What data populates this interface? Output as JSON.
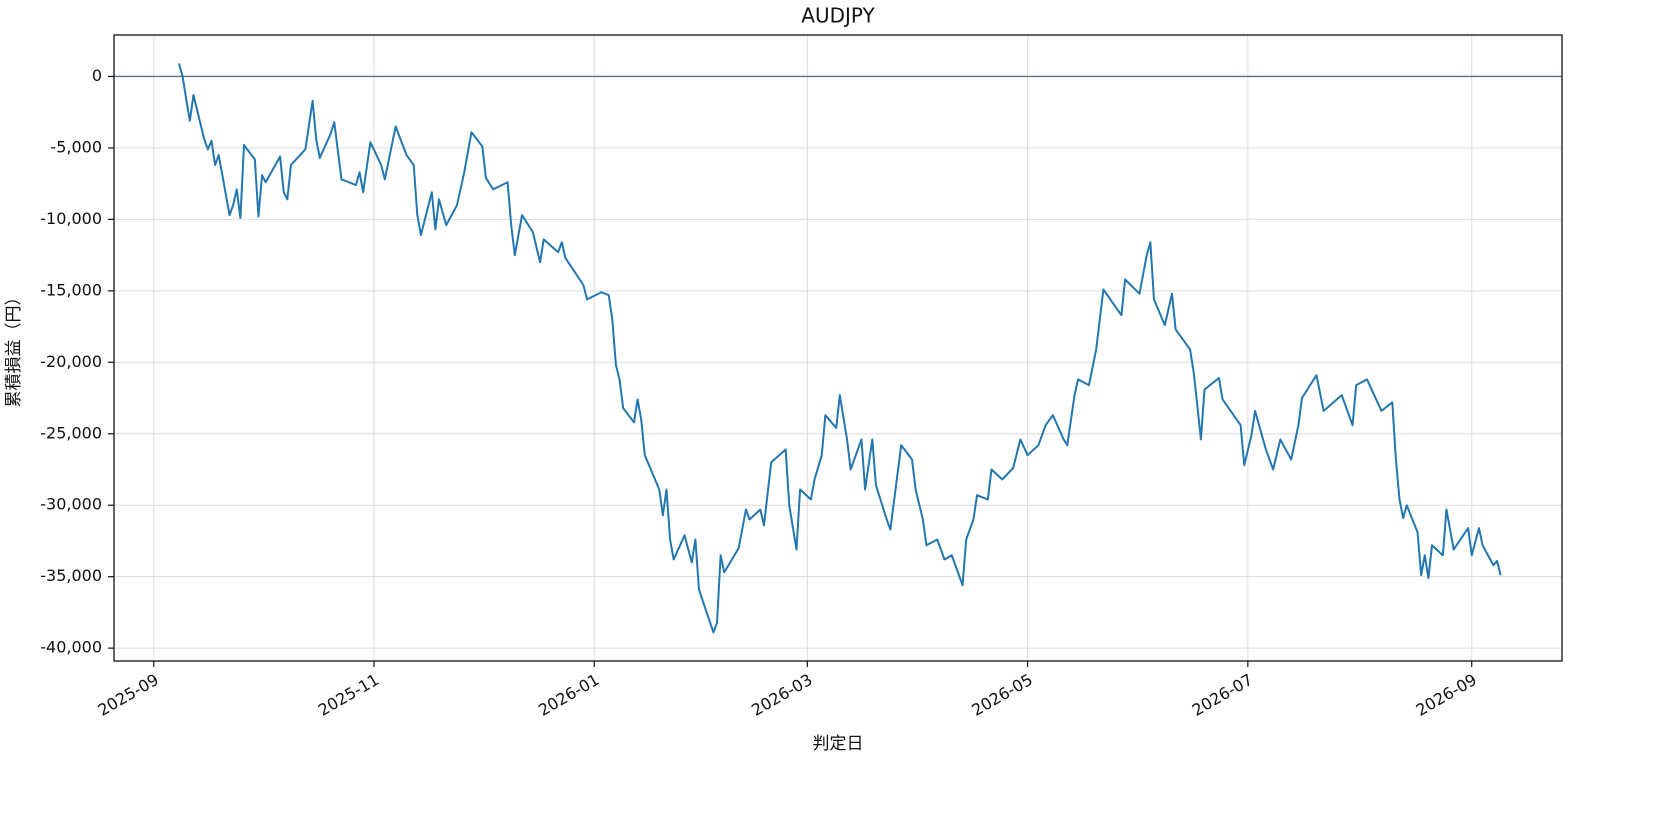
{
  "chart_data": {
    "type": "line",
    "title": "AUDJPY",
    "xlabel": "判定日",
    "ylabel": "累積損益（円）",
    "grid": true,
    "hline": 0,
    "xlim": [
      "2025-08-21",
      "2026-09-26"
    ],
    "ylim": [
      -40900,
      2900
    ],
    "xticks": [
      {
        "value": "2025-09-01",
        "label": "2025-09"
      },
      {
        "value": "2025-11-01",
        "label": "2025-11"
      },
      {
        "value": "2026-01-01",
        "label": "2026-01"
      },
      {
        "value": "2026-03-01",
        "label": "2026-03"
      },
      {
        "value": "2026-05-01",
        "label": "2026-05"
      },
      {
        "value": "2026-07-01",
        "label": "2026-07"
      },
      {
        "value": "2026-09-01",
        "label": "2026-09"
      }
    ],
    "yticks": [
      0,
      {
        "value": -5000,
        "label": "-5,000"
      },
      {
        "value": -10000,
        "label": "-10,000"
      },
      {
        "value": -15000,
        "label": "-15,000"
      },
      {
        "value": -20000,
        "label": "-20,000"
      },
      {
        "value": -25000,
        "label": "-25,000"
      },
      {
        "value": -30000,
        "label": "-30,000"
      },
      {
        "value": -35000,
        "label": "-35,000"
      },
      {
        "value": -40000,
        "label": "-40,000"
      }
    ],
    "x": [
      "2025-09-08",
      "2025-09-09",
      "2025-09-10",
      "2025-09-11",
      "2025-09-12",
      "2025-09-15",
      "2025-09-16",
      "2025-09-17",
      "2025-09-18",
      "2025-09-19",
      "2025-09-22",
      "2025-09-23",
      "2025-09-24",
      "2025-09-25",
      "2025-09-26",
      "2025-09-29",
      "2025-09-30",
      "2025-10-01",
      "2025-10-02",
      "2025-10-06",
      "2025-10-07",
      "2025-10-08",
      "2025-10-09",
      "2025-10-13",
      "2025-10-15",
      "2025-10-16",
      "2025-10-17",
      "2025-10-20",
      "2025-10-21",
      "2025-10-23",
      "2025-10-27",
      "2025-10-28",
      "2025-10-29",
      "2025-10-31",
      "2025-11-03",
      "2025-11-04",
      "2025-11-07",
      "2025-11-10",
      "2025-11-12",
      "2025-11-13",
      "2025-11-14",
      "2025-11-17",
      "2025-11-18",
      "2025-11-19",
      "2025-11-21",
      "2025-11-24",
      "2025-11-26",
      "2025-11-28",
      "2025-12-01",
      "2025-12-02",
      "2025-12-04",
      "2025-12-08",
      "2025-12-09",
      "2025-12-10",
      "2025-12-12",
      "2025-12-15",
      "2025-12-17",
      "2025-12-18",
      "2025-12-22",
      "2025-12-23",
      "2025-12-24",
      "2025-12-29",
      "2025-12-30",
      "2026-01-03",
      "2026-01-05",
      "2026-01-06",
      "2026-01-07",
      "2026-01-08",
      "2026-01-09",
      "2026-01-12",
      "2026-01-13",
      "2026-01-14",
      "2026-01-15",
      "2026-01-19",
      "2026-01-20",
      "2026-01-21",
      "2026-01-22",
      "2026-01-23",
      "2026-01-26",
      "2026-01-28",
      "2026-01-29",
      "2026-01-30",
      "2026-02-03",
      "2026-02-04",
      "2026-02-05",
      "2026-02-06",
      "2026-02-10",
      "2026-02-12",
      "2026-02-13",
      "2026-02-16",
      "2026-02-17",
      "2026-02-19",
      "2026-02-23",
      "2026-02-24",
      "2026-02-26",
      "2026-02-27",
      "2026-03-02",
      "2026-03-03",
      "2026-03-05",
      "2026-03-06",
      "2026-03-09",
      "2026-03-10",
      "2026-03-12",
      "2026-03-13",
      "2026-03-16",
      "2026-03-17",
      "2026-03-19",
      "2026-03-20",
      "2026-03-23",
      "2026-03-24",
      "2026-03-27",
      "2026-03-30",
      "2026-03-31",
      "2026-04-02",
      "2026-04-03",
      "2026-04-06",
      "2026-04-08",
      "2026-04-10",
      "2026-04-13",
      "2026-04-14",
      "2026-04-16",
      "2026-04-17",
      "2026-04-20",
      "2026-04-21",
      "2026-04-24",
      "2026-04-27",
      "2026-04-29",
      "2026-05-01",
      "2026-05-04",
      "2026-05-06",
      "2026-05-08",
      "2026-05-11",
      "2026-05-12",
      "2026-05-14",
      "2026-05-15",
      "2026-05-18",
      "2026-05-20",
      "2026-05-22",
      "2026-05-25",
      "2026-05-27",
      "2026-05-28",
      "2026-06-01",
      "2026-06-03",
      "2026-06-04",
      "2026-06-05",
      "2026-06-08",
      "2026-06-10",
      "2026-06-11",
      "2026-06-15",
      "2026-06-16",
      "2026-06-17",
      "2026-06-18",
      "2026-06-19",
      "2026-06-23",
      "2026-06-24",
      "2026-06-29",
      "2026-06-30",
      "2026-07-02",
      "2026-07-03",
      "2026-07-06",
      "2026-07-08",
      "2026-07-10",
      "2026-07-13",
      "2026-07-15",
      "2026-07-16",
      "2026-07-20",
      "2026-07-22",
      "2026-07-27",
      "2026-07-30",
      "2026-07-31",
      "2026-08-03",
      "2026-08-05",
      "2026-08-07",
      "2026-08-10",
      "2026-08-11",
      "2026-08-12",
      "2026-08-13",
      "2026-08-14",
      "2026-08-17",
      "2026-08-18",
      "2026-08-19",
      "2026-08-20",
      "2026-08-21",
      "2026-08-24",
      "2026-08-25",
      "2026-08-27",
      "2026-08-31",
      "2026-09-01",
      "2026-09-03",
      "2026-09-04",
      "2026-09-07",
      "2026-09-08",
      "2026-09-09"
    ],
    "series": [
      {
        "name": "AUDJPY",
        "color": "#2377b0",
        "values": [
          900,
          0,
          -1600,
          -3100,
          -1300,
          -4400,
          -5100,
          -4500,
          -6200,
          -5500,
          -9700,
          -9000,
          -7900,
          -9900,
          -4800,
          -5800,
          -9800,
          -6900,
          -7400,
          -5600,
          -8100,
          -8600,
          -6200,
          -5100,
          -1700,
          -4400,
          -5700,
          -4000,
          -3200,
          -7200,
          -7600,
          -6700,
          -8100,
          -4600,
          -6200,
          -7200,
          -3500,
          -5500,
          -6200,
          -9700,
          -11100,
          -8100,
          -10700,
          -8600,
          -10400,
          -9000,
          -6700,
          -3900,
          -4900,
          -7100,
          -7900,
          -7400,
          -10400,
          -12500,
          -9700,
          -10900,
          -13000,
          -11400,
          -12300,
          -11600,
          -12700,
          -14600,
          -15600,
          -15100,
          -15300,
          -17000,
          -20200,
          -21200,
          -23200,
          -24200,
          -22600,
          -24000,
          -26500,
          -28900,
          -30700,
          -28900,
          -32400,
          -33800,
          -32100,
          -34000,
          -32400,
          -35900,
          -38900,
          -38200,
          -33500,
          -34700,
          -33000,
          -30300,
          -31000,
          -30300,
          -31400,
          -27000,
          -26100,
          -30000,
          -33100,
          -28900,
          -29600,
          -28200,
          -26500,
          -23700,
          -24600,
          -22300,
          -25400,
          -27500,
          -25400,
          -28900,
          -25400,
          -28600,
          -31000,
          -31700,
          -25800,
          -26800,
          -28900,
          -31000,
          -32800,
          -32400,
          -33800,
          -33500,
          -35600,
          -32400,
          -31000,
          -29300,
          -29600,
          -27500,
          -28200,
          -27400,
          -25400,
          -26500,
          -25800,
          -24400,
          -23700,
          -25400,
          -25800,
          -22300,
          -21200,
          -21600,
          -19100,
          -14900,
          -16000,
          -16700,
          -14200,
          -15200,
          -12500,
          -11600,
          -15600,
          -17400,
          -15200,
          -17700,
          -19100,
          -20700,
          -23000,
          -25400,
          -21900,
          -21100,
          -22600,
          -24400,
          -27200,
          -25100,
          -23400,
          -26100,
          -27500,
          -25400,
          -26800,
          -24400,
          -22500,
          -20900,
          -23400,
          -22300,
          -24400,
          -21600,
          -21200,
          -22300,
          -23400,
          -22800,
          -26800,
          -29600,
          -30900,
          -30000,
          -31900,
          -34900,
          -33500,
          -35100,
          -32800,
          -33500,
          -30300,
          -33100,
          -31600,
          -33500,
          -31600,
          -32800,
          -34200,
          -33900,
          -34900
        ]
      }
    ]
  }
}
